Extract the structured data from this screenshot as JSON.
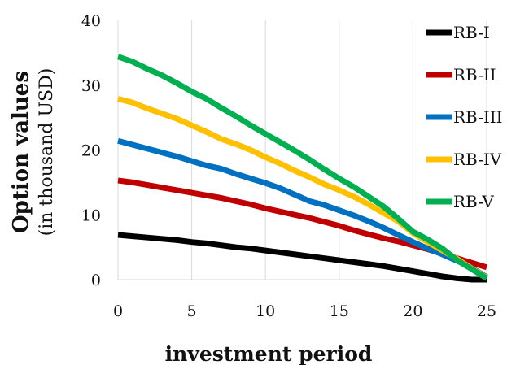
{
  "chart_data": {
    "type": "line",
    "title": "",
    "xlabel": "investment period",
    "ylabel": "Option values",
    "ylabel_sub": "(in thousand USD)",
    "xlim": [
      0,
      25
    ],
    "ylim": [
      0,
      40
    ],
    "xticks": [
      0,
      5,
      10,
      15,
      20,
      25
    ],
    "yticks": [
      0,
      10,
      20,
      30,
      40
    ],
    "grid": "vertical",
    "legend_position": "right",
    "x": [
      0,
      1,
      2,
      3,
      4,
      5,
      6,
      7,
      8,
      9,
      10,
      11,
      12,
      13,
      14,
      15,
      16,
      17,
      18,
      19,
      20,
      21,
      22,
      23,
      24,
      25
    ],
    "series": [
      {
        "name": "RB-I",
        "color": "#000000",
        "values": [
          6.9,
          6.7,
          6.5,
          6.3,
          6.1,
          5.8,
          5.6,
          5.3,
          5.0,
          4.8,
          4.5,
          4.2,
          3.9,
          3.6,
          3.3,
          3.0,
          2.7,
          2.4,
          2.1,
          1.7,
          1.3,
          0.9,
          0.5,
          0.2,
          0.0,
          0.0
        ]
      },
      {
        "name": "RB-II",
        "color": "#c00000",
        "values": [
          15.3,
          15.0,
          14.6,
          14.2,
          13.8,
          13.4,
          13.0,
          12.6,
          12.1,
          11.6,
          11.0,
          10.5,
          10.0,
          9.5,
          8.9,
          8.3,
          7.6,
          7.0,
          6.4,
          5.9,
          5.3,
          4.7,
          4.0,
          3.3,
          2.6,
          1.9
        ]
      },
      {
        "name": "RB-III",
        "color": "#0070c0",
        "values": [
          21.4,
          20.8,
          20.2,
          19.6,
          19.0,
          18.3,
          17.6,
          17.1,
          16.3,
          15.6,
          14.9,
          14.1,
          13.1,
          12.1,
          11.5,
          10.7,
          9.9,
          9.0,
          8.0,
          6.9,
          5.8,
          4.8,
          3.9,
          2.9,
          1.8,
          0.4
        ]
      },
      {
        "name": "RB-IV",
        "color": "#ffc000",
        "values": [
          27.9,
          27.3,
          26.4,
          25.6,
          24.8,
          23.8,
          22.8,
          21.7,
          20.9,
          20.0,
          18.9,
          17.9,
          16.8,
          15.8,
          14.7,
          13.8,
          12.8,
          11.6,
          10.3,
          9.0,
          7.2,
          5.8,
          4.5,
          3.2,
          1.7,
          0.3
        ]
      },
      {
        "name": "RB-V",
        "color": "#00b050",
        "values": [
          34.4,
          33.6,
          32.5,
          31.5,
          30.3,
          29.0,
          27.9,
          26.5,
          25.2,
          23.8,
          22.5,
          21.2,
          19.9,
          18.5,
          17.0,
          15.6,
          14.3,
          12.8,
          11.3,
          9.4,
          7.4,
          6.2,
          4.8,
          3.0,
          1.6,
          0.2
        ]
      }
    ]
  }
}
